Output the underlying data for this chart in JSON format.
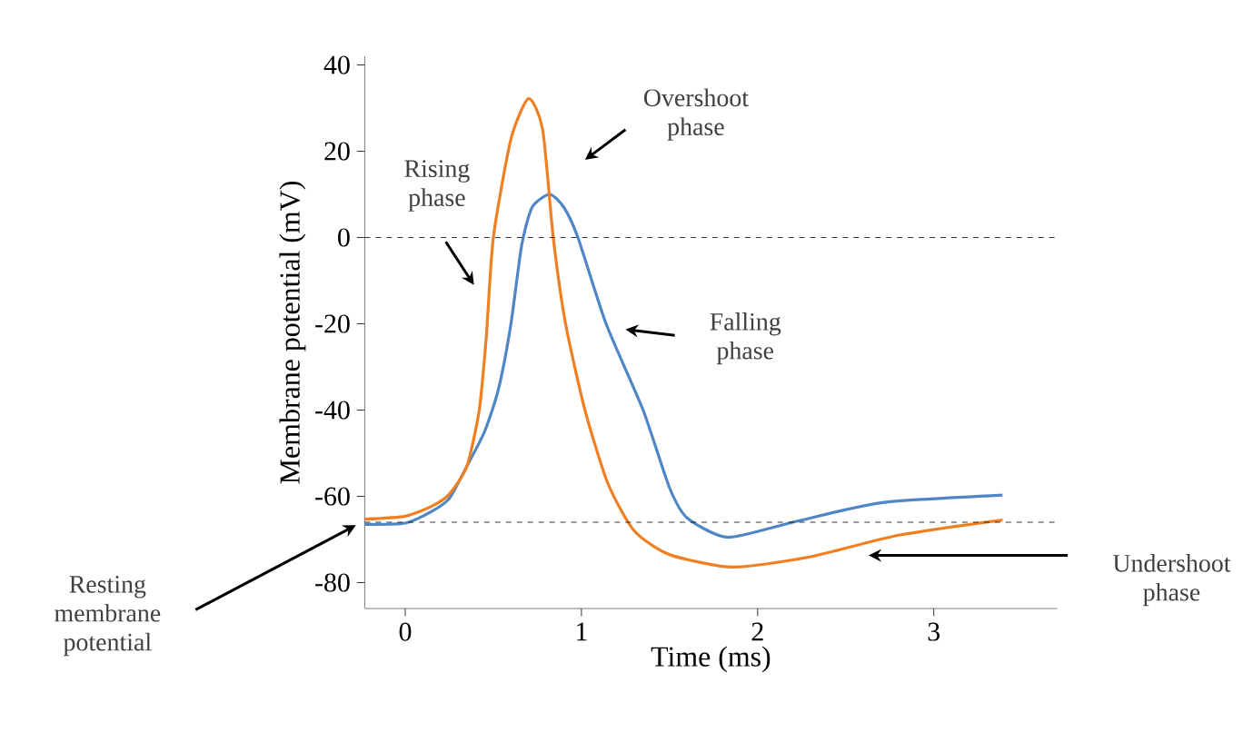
{
  "chart_data": {
    "type": "line",
    "xlabel": "Time (ms)",
    "ylabel": "Membrane potential (mV)",
    "xlim": [
      -0.23,
      3.7
    ],
    "ylim": [
      -86,
      42
    ],
    "xticks": [
      0,
      1,
      2,
      3
    ],
    "yticks": [
      -80,
      -60,
      -40,
      -20,
      0,
      20,
      40
    ],
    "grid": false,
    "marker": "none",
    "line_style": "solid",
    "series": [
      {
        "color": "#4f86c6",
        "x": [
          -0.23,
          0,
          0.15,
          0.25,
          0.35,
          0.45,
          0.53,
          0.6,
          0.66,
          0.72,
          0.82,
          0.9,
          0.98,
          1.14,
          1.35,
          1.5,
          1.6,
          1.83,
          2.2,
          2.7,
          3.39
        ],
        "values": [
          -66.5,
          -66.2,
          -63.5,
          -60.5,
          -53,
          -45,
          -35,
          -20,
          -2,
          7,
          10,
          7,
          0,
          -20,
          -40,
          -58,
          -65,
          -69.5,
          -66,
          -61.5,
          -59.7
        ]
      },
      {
        "color": "#f07f22",
        "x": [
          -0.23,
          0,
          0.15,
          0.25,
          0.35,
          0.42,
          0.46,
          0.5,
          0.6,
          0.7,
          0.78,
          0.84,
          0.91,
          1.02,
          1.15,
          1.3,
          1.5,
          1.86,
          2.3,
          2.8,
          3.39
        ],
        "values": [
          -65.3,
          -64.6,
          -62.3,
          -59.5,
          -53,
          -40,
          -23,
          0,
          22.8,
          32.2,
          25,
          0,
          -20,
          -40,
          -57,
          -68,
          -73.5,
          -76.4,
          -74,
          -69,
          -65.5
        ]
      }
    ],
    "ref_lines": [
      {
        "axis": "y",
        "value": 0,
        "color": "#000000",
        "line_style": "dashed"
      },
      {
        "axis": "y",
        "value": -66,
        "color": "#000000",
        "line_style": "dashed"
      }
    ],
    "annotations": [
      "Rising phase",
      "Overshoot phase",
      "Falling phase",
      "Undershoot phase",
      "Resting membrane potential"
    ]
  }
}
